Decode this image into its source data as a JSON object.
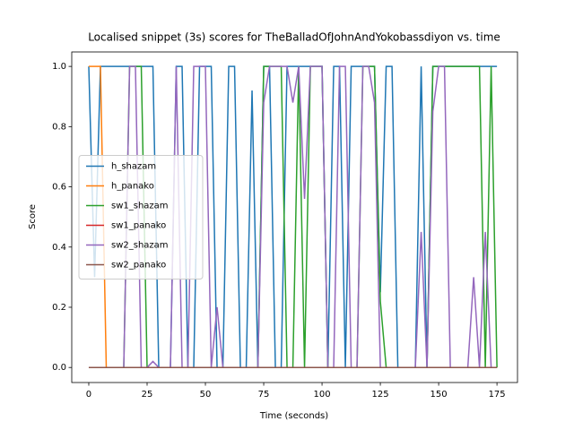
{
  "chart_data": {
    "type": "line",
    "title": "Localised snippet (3s) scores for TheBalladOfJohnAndYokobassdiyon vs. time",
    "xlabel": "Time (seconds)",
    "ylabel": "Score",
    "x": [
      0,
      2.5,
      5,
      7.5,
      10,
      12.5,
      15,
      17.5,
      20,
      22.5,
      25,
      27.5,
      30,
      32.5,
      35,
      37.5,
      40,
      42.5,
      45,
      47.5,
      50,
      52.5,
      55,
      57.5,
      60,
      62.5,
      65,
      67.5,
      70,
      72.5,
      75,
      77.5,
      80,
      82.5,
      85,
      87.5,
      90,
      92.5,
      95,
      97.5,
      100,
      102.5,
      105,
      107.5,
      110,
      112.5,
      115,
      117.5,
      120,
      122.5,
      125,
      127.5,
      130,
      132.5,
      135,
      137.5,
      140,
      142.5,
      145,
      147.5,
      150,
      152.5,
      155,
      157.5,
      160,
      162.5,
      165,
      167.5,
      170,
      172.5,
      175
    ],
    "series": [
      {
        "name": "h_shazam",
        "color": "#1f77b4",
        "values": [
          1,
          0.3,
          1,
          1,
          1,
          1,
          1,
          1,
          1,
          1,
          1,
          1,
          0,
          0,
          0,
          1,
          1,
          0,
          0,
          1,
          1,
          1,
          0,
          0,
          1,
          1,
          0,
          0,
          0.92,
          0,
          1,
          1,
          0,
          0,
          1,
          1,
          1,
          1,
          1,
          1,
          1,
          0,
          1,
          1,
          0,
          1,
          1,
          1,
          1,
          1,
          0.25,
          1,
          1,
          0,
          0,
          0,
          0,
          1,
          0,
          1,
          1,
          1,
          1,
          1,
          1,
          1,
          1,
          1,
          1,
          1,
          1
        ]
      },
      {
        "name": "h_panako",
        "color": "#ff7f0e",
        "values": [
          1,
          1,
          1,
          0,
          0,
          0,
          0,
          0,
          0,
          0,
          0,
          0,
          0,
          0,
          0,
          0,
          0,
          0,
          0,
          0,
          0,
          0,
          0,
          0,
          0,
          0,
          0,
          0,
          0,
          0,
          0,
          0,
          0,
          0,
          0,
          0,
          0,
          0,
          0,
          0,
          0,
          0,
          0,
          0,
          0,
          0,
          0,
          0,
          0,
          0,
          0,
          0,
          0,
          0,
          0,
          0,
          0,
          0,
          0,
          0,
          0,
          0,
          0,
          0,
          0,
          0,
          0,
          0,
          0,
          0,
          0
        ]
      },
      {
        "name": "sw1_shazam",
        "color": "#2ca02c",
        "values": [
          0,
          0,
          0,
          0,
          0,
          0,
          0,
          1,
          1,
          1,
          0,
          0,
          0,
          0,
          0,
          0,
          0,
          0,
          0,
          0,
          0,
          0,
          0,
          0,
          0,
          0,
          0,
          0,
          0,
          0,
          1,
          1,
          1,
          1,
          0,
          0,
          1,
          0,
          1,
          1,
          1,
          0,
          0,
          0,
          0,
          0,
          0,
          1,
          1,
          1,
          0.22,
          0,
          0,
          0,
          0,
          0,
          0,
          0,
          0,
          1,
          1,
          1,
          1,
          1,
          1,
          1,
          1,
          1,
          0,
          1,
          0
        ]
      },
      {
        "name": "sw1_panako",
        "color": "#d62728",
        "values": [
          0,
          0,
          0,
          0,
          0,
          0,
          0,
          0,
          0,
          0,
          0,
          0,
          0,
          0,
          0,
          0,
          0,
          0,
          0,
          0,
          0,
          0,
          0,
          0,
          0,
          0,
          0,
          0,
          0,
          0,
          0,
          0,
          0,
          0,
          0,
          0,
          0,
          0,
          0,
          0,
          0,
          0,
          0,
          0,
          0,
          0,
          0,
          0,
          0,
          0,
          0,
          0,
          0,
          0,
          0,
          0,
          0,
          0,
          0,
          0,
          0,
          0,
          0,
          0,
          0,
          0,
          0,
          0,
          0,
          0,
          0
        ]
      },
      {
        "name": "sw2_shazam",
        "color": "#9467bd",
        "values": [
          0,
          0,
          0,
          0,
          0,
          0,
          0,
          1,
          1,
          0,
          0,
          0.02,
          0,
          0,
          0,
          1,
          0,
          0,
          1,
          1,
          1,
          0,
          0.2,
          0,
          0,
          0,
          0,
          0,
          0,
          0,
          0.88,
          1,
          1,
          1,
          1,
          0.88,
          1,
          0.56,
          1,
          1,
          1,
          0,
          0,
          1,
          1,
          0,
          0,
          1,
          1,
          0.88,
          0,
          0,
          0,
          0,
          0,
          0,
          0,
          0.45,
          0,
          0.85,
          1,
          1,
          0,
          0,
          0,
          0,
          0.3,
          0,
          0.45,
          0,
          0
        ]
      },
      {
        "name": "sw2_panako",
        "color": "#8c564b",
        "values": [
          0,
          0,
          0,
          0,
          0,
          0,
          0,
          0,
          0,
          0,
          0,
          0,
          0,
          0,
          0,
          0,
          0,
          0,
          0,
          0,
          0,
          0,
          0,
          0,
          0,
          0,
          0,
          0,
          0,
          0,
          0,
          0,
          0,
          0,
          0,
          0,
          0,
          0,
          0,
          0,
          0,
          0,
          0,
          0,
          0,
          0,
          0,
          0,
          0,
          0,
          0,
          0,
          0,
          0,
          0,
          0,
          0,
          0,
          0,
          0,
          0,
          0,
          0,
          0,
          0,
          0,
          0,
          0,
          0,
          0,
          0
        ]
      }
    ],
    "xlim": [
      -7.3,
      183.8
    ],
    "ylim": [
      -0.05,
      1.048
    ],
    "xticks": [
      0,
      25,
      50,
      75,
      100,
      125,
      150,
      175
    ],
    "yticks": [
      {
        "value": 0,
        "label": "0.0"
      },
      {
        "value": 0.2,
        "label": "0.2"
      },
      {
        "value": 0.4,
        "label": "0.4"
      },
      {
        "value": 0.6,
        "label": "0.6"
      },
      {
        "value": 0.8,
        "label": "0.8"
      },
      {
        "value": 1,
        "label": "1.0"
      }
    ],
    "legend": "center left"
  }
}
